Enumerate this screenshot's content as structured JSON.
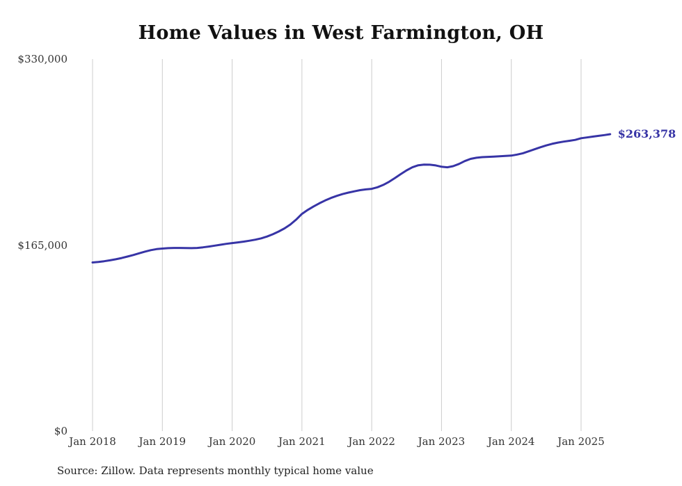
{
  "title": "Home Values in West Farmington, OH",
  "source_note": "Source: Zillow. Data represents monthly typical home value",
  "colors": {
    "line": "#3734a6",
    "grid": "#cccccc",
    "label": "#333333"
  },
  "chart_data": {
    "type": "line",
    "title": "Home Values in West Farmington, OH",
    "xlabel": "",
    "ylabel": "",
    "ylim": [
      0,
      330000
    ],
    "grid": "vertical-only",
    "legend": "none",
    "x_start": "2018-01",
    "x_end": "2025-06",
    "x_tick_labels": [
      "Jan 2018",
      "Jan 2019",
      "Jan 2020",
      "Jan 2021",
      "Jan 2022",
      "Jan 2023",
      "Jan 2024",
      "Jan 2025"
    ],
    "y_ticks": [
      {
        "label": "$330,000",
        "value": 330000
      },
      {
        "label": "$165,000",
        "value": 165000
      },
      {
        "label": "$0",
        "value": 0
      }
    ],
    "annotation": {
      "text": "$263,378",
      "value": 263378
    },
    "series": [
      {
        "name": "Typical home value (monthly)",
        "monthly_values": [
          149600,
          150100,
          150700,
          151500,
          152400,
          153500,
          154800,
          156200,
          157700,
          159200,
          160500,
          161400,
          161900,
          162300,
          162500,
          162500,
          162400,
          162300,
          162500,
          163000,
          163700,
          164500,
          165300,
          166100,
          166800,
          167400,
          168100,
          168900,
          169800,
          171000,
          172600,
          174600,
          177000,
          179800,
          183200,
          187600,
          192700,
          196200,
          199300,
          202100,
          204600,
          206800,
          208700,
          210300,
          211600,
          212700,
          213700,
          214400,
          214900,
          216300,
          218400,
          221200,
          224500,
          228000,
          231300,
          234000,
          235800,
          236400,
          236300,
          235700,
          234500,
          234000,
          235000,
          237000,
          239500,
          241500,
          242500,
          243000,
          243300,
          243500,
          243800,
          244100,
          244400,
          245300,
          246500,
          248200,
          250000,
          251800,
          253400,
          254800,
          255900,
          256800,
          257500,
          258300,
          259800,
          260500,
          261200,
          261900,
          262600,
          263378
        ]
      }
    ]
  }
}
